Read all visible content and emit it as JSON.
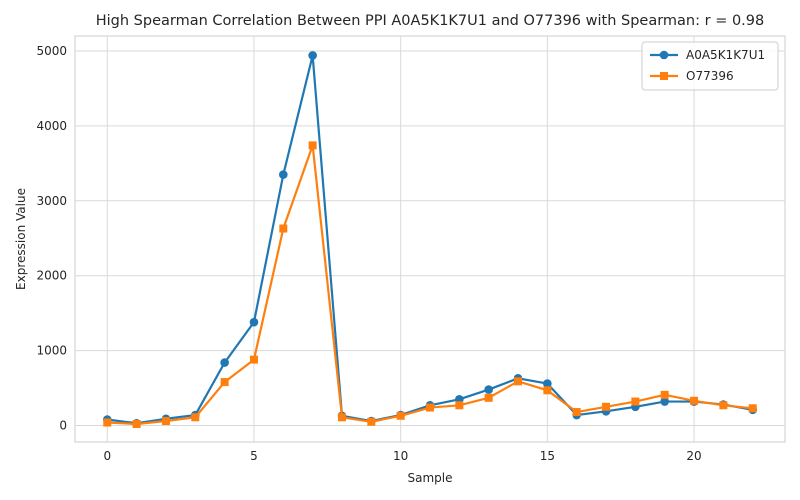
{
  "chart_data": {
    "type": "line",
    "title": "High Spearman Correlation Between PPI A0A5K1K7U1 and O77396 with Spearman: r = 0.98",
    "xlabel": "Sample",
    "ylabel": "Expression Value",
    "xlim": [
      -1.1,
      23.1
    ],
    "ylim": [
      -220,
      5200
    ],
    "xticks": [
      0,
      5,
      10,
      15,
      20
    ],
    "yticks": [
      0,
      1000,
      2000,
      3000,
      4000,
      5000
    ],
    "grid": true,
    "legend_position": "top-right",
    "x": [
      0,
      1,
      2,
      3,
      4,
      5,
      6,
      7,
      8,
      9,
      10,
      11,
      12,
      13,
      14,
      15,
      16,
      17,
      18,
      19,
      20,
      21,
      22
    ],
    "series": [
      {
        "name": "A0A5K1K7U1",
        "color": "#1f77b4",
        "marker": "circle",
        "values": [
          80,
          30,
          90,
          140,
          840,
          1380,
          3350,
          4940,
          130,
          60,
          140,
          270,
          350,
          480,
          630,
          560,
          140,
          190,
          250,
          320,
          320,
          280,
          210
        ]
      },
      {
        "name": "O77396",
        "color": "#ff7f0e",
        "marker": "square",
        "values": [
          40,
          20,
          60,
          110,
          580,
          880,
          2630,
          3740,
          110,
          50,
          130,
          240,
          270,
          370,
          590,
          470,
          180,
          250,
          320,
          410,
          330,
          270,
          230
        ]
      }
    ]
  }
}
